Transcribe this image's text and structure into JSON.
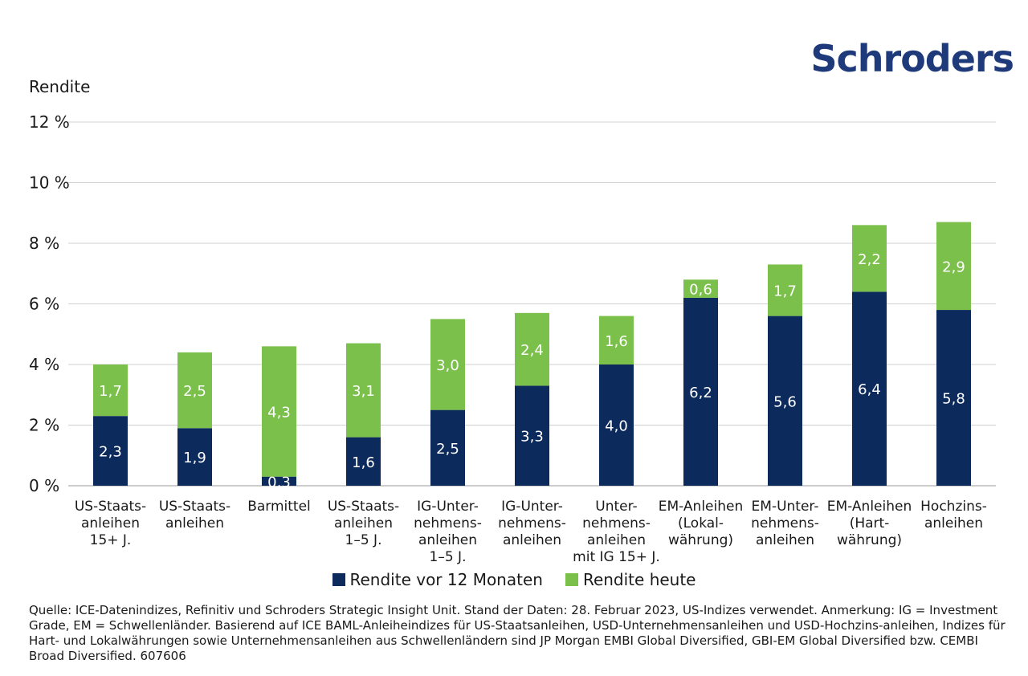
{
  "brand": {
    "logo_text": "Schroders",
    "logo_color": "#1f3a7a"
  },
  "chart_data": {
    "type": "bar",
    "stacked": true,
    "ylabel": "Rendite",
    "ylim": [
      0,
      12
    ],
    "yticks": [
      "0 %",
      "2 %",
      "4 %",
      "6 %",
      "8 %",
      "10 %",
      "12 %"
    ],
    "ytick_values": [
      0,
      2,
      4,
      6,
      8,
      10,
      12
    ],
    "grid": true,
    "legend_position": "bottom",
    "categories": [
      [
        "US-Staats-",
        "anleihen",
        "15+ J."
      ],
      [
        "US-Staats-",
        "anleihen"
      ],
      [
        "Barmittel"
      ],
      [
        "US-Staats-",
        "anleihen",
        "1–5 J."
      ],
      [
        "IG-Unter-",
        "nehmens-",
        "anleihen",
        "1–5 J."
      ],
      [
        "IG-Unter-",
        "nehmens-",
        "anleihen"
      ],
      [
        "Unter-",
        "nehmens-",
        "anleihen",
        "mit IG 15+ J."
      ],
      [
        "EM-Anleihen",
        "(Lokal-",
        "währung)"
      ],
      [
        "EM-Unter-",
        "nehmens-",
        "anleihen"
      ],
      [
        "EM-Anleihen",
        "(Hart-",
        "währung)"
      ],
      [
        "Hochzins-",
        "anleihen"
      ]
    ],
    "series": [
      {
        "name": "Rendite vor 12 Monaten",
        "color": "#0d2a5c",
        "values": [
          2.3,
          1.9,
          0.3,
          1.6,
          2.5,
          3.3,
          4.0,
          6.2,
          5.6,
          6.4,
          5.8
        ],
        "labels": [
          "2,3",
          "1,9",
          "0,3",
          "1,6",
          "2,5",
          "3,3",
          "4,0",
          "6,2",
          "5,6",
          "6,4",
          "5,8"
        ]
      },
      {
        "name": "Rendite heute",
        "color": "#7bc04a",
        "values": [
          1.7,
          2.5,
          4.3,
          3.1,
          3.0,
          2.4,
          1.6,
          0.6,
          1.7,
          2.2,
          2.9
        ],
        "labels": [
          "1,7",
          "2,5",
          "4,3",
          "3,1",
          "3,0",
          "2,4",
          "1,6",
          "0,6",
          "1,7",
          "2,2",
          "2,9"
        ]
      }
    ]
  },
  "source_text": "Quelle: ICE-Datenindizes, Refinitiv und Schroders Strategic Insight Unit. Stand der Daten: 28. Februar 2023, US-Indizes verwendet. Anmerkung: IG = Investment Grade, EM = Schwellenländer. Basierend auf ICE BAML-Anleiheindizes für US-Staatsanleihen, USD-Unternehmensanleihen und USD-Hochzins-anleihen, Indizes für Hart- und Lokalwährungen sowie Unternehmensanleihen aus Schwellenländern sind JP Morgan EMBI Global Diversified, GBI-EM Global Diversified bzw. CEMBI Broad Diversified. 607606"
}
